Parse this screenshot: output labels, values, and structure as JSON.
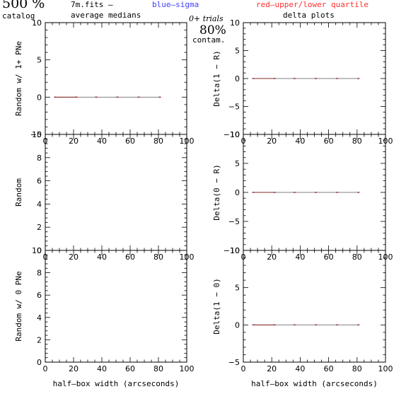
{
  "header": {
    "count": "500 %",
    "catalog": "catalog",
    "file": "7m.fits  –",
    "average": "average medians",
    "blue_legend": "blue–sigma",
    "red_legend": "red–upper/lower quartile",
    "trials": "0+ trials",
    "contam_pct": "80%",
    "contam_label": "contam.",
    "delta_title": "delta plots"
  },
  "colors": {
    "blue": "#4040ff",
    "red": "#ff3030",
    "axis": "#000000",
    "line": "#808080",
    "marker": "#8a2a2a"
  },
  "chart_data": [
    {
      "type": "line",
      "ylabel": "Random w/ 1+ PNe",
      "xlim": [
        0,
        100
      ],
      "ylim": [
        -5,
        10
      ],
      "xticks": [
        "0",
        "20",
        "40",
        "60",
        "80",
        "100"
      ],
      "yticks": [
        "−5",
        "0",
        "5",
        "10"
      ],
      "series": [
        {
          "x": [
            7,
            22,
            36,
            51,
            66,
            81
          ],
          "y": [
            0,
            0,
            0,
            0,
            0,
            0
          ]
        }
      ]
    },
    {
      "type": "line",
      "ylabel": "Delta(1 − R)",
      "xlim": [
        0,
        100
      ],
      "ylim": [
        -10,
        10
      ],
      "xticks": [
        "0",
        "20",
        "40",
        "60",
        "80",
        "100"
      ],
      "yticks": [
        "−10",
        "−5",
        "0",
        "5",
        "10"
      ],
      "series": [
        {
          "x": [
            7,
            22,
            36,
            51,
            66,
            81
          ],
          "y": [
            0,
            0,
            0,
            0,
            0,
            0
          ]
        }
      ]
    },
    {
      "type": "line",
      "ylabel": "Random",
      "xlim": [
        0,
        100
      ],
      "ylim": [
        0,
        10
      ],
      "xticks": [
        "0",
        "20",
        "40",
        "60",
        "80",
        "100"
      ],
      "yticks": [
        "0",
        "2",
        "4",
        "6",
        "8",
        "10"
      ],
      "series": []
    },
    {
      "type": "line",
      "ylabel": "Delta(0 − R)",
      "xlim": [
        0,
        100
      ],
      "ylim": [
        -10,
        10
      ],
      "xticks": [
        "0",
        "20",
        "40",
        "60",
        "80",
        "100"
      ],
      "yticks": [
        "−10",
        "−5",
        "0",
        "5",
        "10"
      ],
      "series": [
        {
          "x": [
            7,
            22,
            36,
            51,
            66,
            81
          ],
          "y": [
            0,
            0,
            0,
            0,
            0,
            0
          ]
        }
      ]
    },
    {
      "type": "line",
      "ylabel": "Random w/ 0 PNe",
      "xlabel": "half–box width (arcseconds)",
      "xlim": [
        0,
        100
      ],
      "ylim": [
        0,
        10
      ],
      "xticks": [
        "0",
        "20",
        "40",
        "60",
        "80",
        "100"
      ],
      "yticks": [
        "0",
        "2",
        "4",
        "6",
        "8",
        "10"
      ],
      "series": []
    },
    {
      "type": "line",
      "ylabel": "Delta(1 − 0)",
      "xlabel": "half–box width (arcseconds)",
      "xlim": [
        0,
        100
      ],
      "ylim": [
        -5,
        10
      ],
      "xticks": [
        "0",
        "20",
        "40",
        "60",
        "80",
        "100"
      ],
      "yticks": [
        "−5",
        "0",
        "5",
        "10"
      ],
      "series": [
        {
          "x": [
            7,
            22,
            36,
            51,
            66,
            81
          ],
          "y": [
            0,
            0,
            0,
            0,
            0,
            0
          ]
        }
      ]
    }
  ]
}
